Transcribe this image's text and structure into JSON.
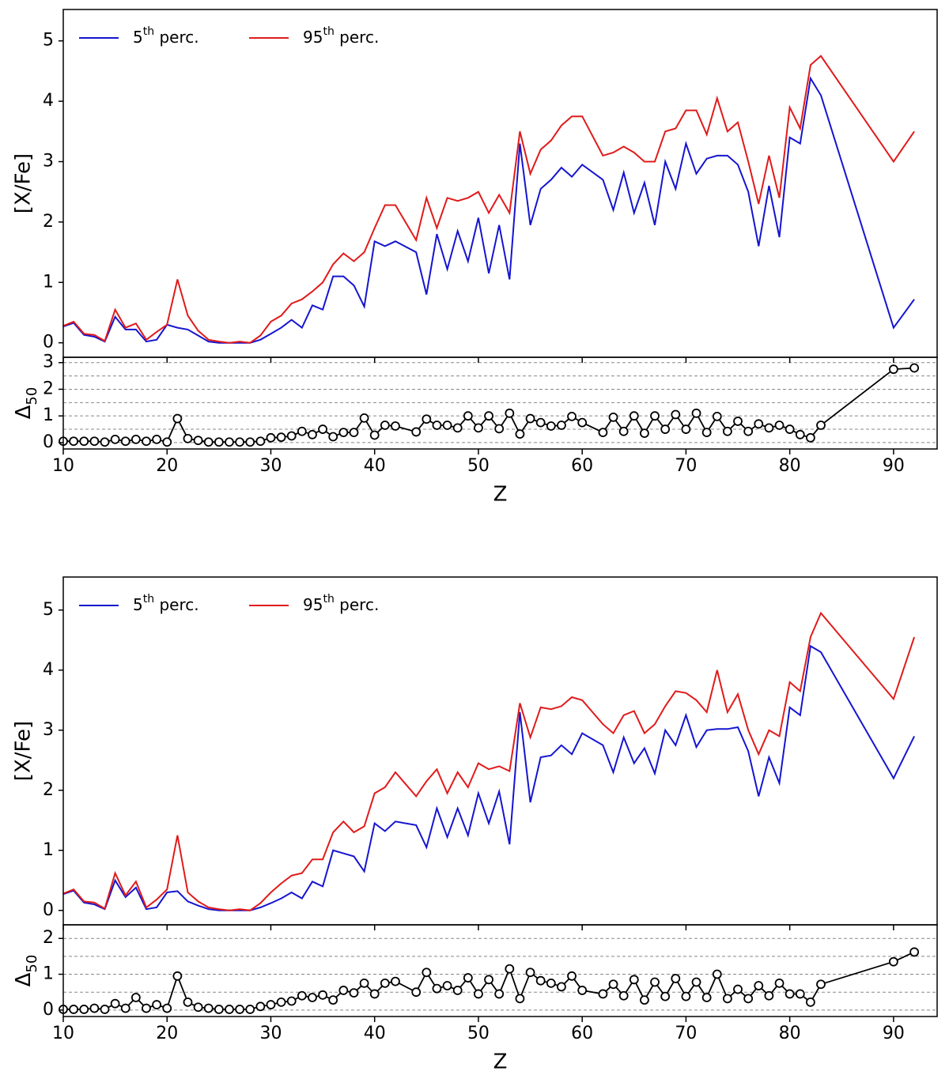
{
  "chart_data": [
    {
      "type": "line",
      "ylabel": "[X/Fe]",
      "xlabel": "Z",
      "legend": "upper left",
      "x": [
        10,
        11,
        12,
        13,
        14,
        15,
        16,
        17,
        18,
        19,
        20,
        21,
        22,
        23,
        24,
        25,
        26,
        27,
        28,
        29,
        30,
        31,
        32,
        33,
        34,
        35,
        36,
        37,
        38,
        39,
        40,
        41,
        42,
        44,
        45,
        46,
        47,
        48,
        49,
        50,
        51,
        52,
        53,
        54,
        55,
        56,
        57,
        58,
        59,
        60,
        62,
        63,
        64,
        65,
        66,
        67,
        68,
        69,
        70,
        71,
        72,
        73,
        74,
        75,
        76,
        77,
        78,
        79,
        80,
        81,
        82,
        83,
        90,
        92
      ],
      "xlim": [
        10,
        94.2
      ],
      "xticks": [
        10,
        20,
        30,
        40,
        50,
        60,
        70,
        80,
        90
      ],
      "ylim": [
        -0.24,
        5.52
      ],
      "yticks": [
        0,
        1,
        2,
        3,
        4,
        5
      ],
      "series": [
        {
          "name": "5th perc.",
          "color": "#1515d0",
          "values": [
            0.27,
            0.33,
            0.13,
            0.1,
            0.02,
            0.43,
            0.22,
            0.22,
            0.02,
            0.05,
            0.3,
            0.25,
            0.22,
            0.12,
            0.02,
            0,
            0,
            0,
            0,
            0.05,
            0.15,
            0.25,
            0.38,
            0.25,
            0.62,
            0.55,
            1.1,
            1.1,
            0.95,
            0.6,
            1.68,
            1.6,
            1.68,
            1.5,
            0.8,
            1.8,
            1.22,
            1.85,
            1.35,
            2.07,
            1.15,
            1.95,
            1.05,
            3.3,
            1.95,
            2.55,
            2.7,
            2.9,
            2.75,
            2.95,
            2.7,
            2.2,
            2.82,
            2.15,
            2.65,
            1.95,
            3.0,
            2.55,
            3.3,
            2.8,
            3.05,
            3.1,
            3.1,
            2.95,
            2.5,
            1.6,
            2.6,
            1.75,
            3.4,
            3.3,
            4.38,
            4.1,
            0.25,
            0.72
          ]
        },
        {
          "name": "95th perc.",
          "color": "#e01b1b",
          "values": [
            0.28,
            0.35,
            0.15,
            0.13,
            0.03,
            0.55,
            0.25,
            0.32,
            0.05,
            0.18,
            0.3,
            1.05,
            0.45,
            0.2,
            0.05,
            0.02,
            0,
            0.02,
            0,
            0.12,
            0.35,
            0.45,
            0.65,
            0.72,
            0.85,
            1.0,
            1.3,
            1.48,
            1.35,
            1.5,
            1.9,
            2.28,
            2.28,
            1.7,
            2.4,
            1.9,
            2.4,
            2.35,
            2.4,
            2.5,
            2.15,
            2.45,
            2.15,
            3.5,
            2.8,
            3.2,
            3.35,
            3.6,
            3.75,
            3.75,
            3.1,
            3.15,
            3.25,
            3.15,
            3.0,
            3.0,
            3.5,
            3.55,
            3.85,
            3.85,
            3.45,
            4.05,
            3.5,
            3.65,
            3.0,
            2.3,
            3.1,
            2.4,
            3.9,
            3.55,
            4.6,
            4.75,
            3.0,
            3.5
          ]
        }
      ],
      "subplot": {
        "type": "line",
        "ylabel": "Δ50",
        "color": "#000000",
        "ylim": [
          -0.24,
          3.2
        ],
        "yticks": [
          0,
          1,
          2,
          3
        ],
        "grid_values": [
          0,
          0.5,
          1,
          1.5,
          2,
          2.5,
          3
        ],
        "values": [
          0.05,
          0.05,
          0.05,
          0.05,
          0.02,
          0.12,
          0.05,
          0.12,
          0.05,
          0.12,
          0.02,
          0.9,
          0.15,
          0.08,
          0.02,
          0.02,
          0.02,
          0.02,
          0.02,
          0.05,
          0.18,
          0.2,
          0.25,
          0.42,
          0.3,
          0.5,
          0.22,
          0.38,
          0.38,
          0.92,
          0.28,
          0.65,
          0.62,
          0.4,
          0.88,
          0.65,
          0.65,
          0.55,
          1.0,
          0.55,
          1.0,
          0.52,
          1.1,
          0.32,
          0.9,
          0.75,
          0.62,
          0.65,
          0.98,
          0.75,
          0.38,
          0.95,
          0.42,
          1.0,
          0.35,
          1.0,
          0.5,
          1.05,
          0.5,
          1.1,
          0.38,
          0.98,
          0.42,
          0.8,
          0.42,
          0.7,
          0.55,
          0.65,
          0.5,
          0.3,
          0.18,
          0.65,
          2.75,
          2.8
        ]
      }
    },
    {
      "type": "line",
      "ylabel": "[X/Fe]",
      "xlabel": "Z",
      "legend": "upper left",
      "x": [
        10,
        11,
        12,
        13,
        14,
        15,
        16,
        17,
        18,
        19,
        20,
        21,
        22,
        23,
        24,
        25,
        26,
        27,
        28,
        29,
        30,
        31,
        32,
        33,
        34,
        35,
        36,
        37,
        38,
        39,
        40,
        41,
        42,
        44,
        45,
        46,
        47,
        48,
        49,
        50,
        51,
        52,
        53,
        54,
        55,
        56,
        57,
        58,
        59,
        60,
        62,
        63,
        64,
        65,
        66,
        67,
        68,
        69,
        70,
        71,
        72,
        73,
        74,
        75,
        76,
        77,
        78,
        79,
        80,
        81,
        82,
        83,
        90,
        92
      ],
      "xlim": [
        10,
        94.2
      ],
      "xticks": [
        10,
        20,
        30,
        40,
        50,
        60,
        70,
        80,
        90
      ],
      "ylim": [
        -0.24,
        5.55
      ],
      "yticks": [
        0,
        1,
        2,
        3,
        4,
        5
      ],
      "series": [
        {
          "name": "5th perc.",
          "color": "#1515d0",
          "values": [
            0.27,
            0.33,
            0.13,
            0.1,
            0.02,
            0.5,
            0.22,
            0.38,
            0.02,
            0.05,
            0.3,
            0.32,
            0.15,
            0.08,
            0.02,
            0,
            0,
            0,
            0,
            0.05,
            0.12,
            0.2,
            0.3,
            0.2,
            0.48,
            0.4,
            1.0,
            0.95,
            0.9,
            0.65,
            1.45,
            1.32,
            1.48,
            1.42,
            1.05,
            1.7,
            1.22,
            1.7,
            1.25,
            1.95,
            1.45,
            1.98,
            1.1,
            3.3,
            1.8,
            2.55,
            2.58,
            2.75,
            2.6,
            2.95,
            2.75,
            2.3,
            2.88,
            2.45,
            2.7,
            2.28,
            3.0,
            2.75,
            3.25,
            2.72,
            3.0,
            3.02,
            3.02,
            3.05,
            2.65,
            1.9,
            2.55,
            2.12,
            3.38,
            3.25,
            4.4,
            4.3,
            2.2,
            2.9
          ]
        },
        {
          "name": "95th perc.",
          "color": "#e01b1b",
          "values": [
            0.28,
            0.35,
            0.15,
            0.13,
            0.03,
            0.62,
            0.25,
            0.48,
            0.05,
            0.18,
            0.35,
            1.25,
            0.3,
            0.15,
            0.05,
            0.02,
            0,
            0.02,
            0,
            0.12,
            0.3,
            0.45,
            0.58,
            0.62,
            0.85,
            0.85,
            1.3,
            1.48,
            1.3,
            1.4,
            1.95,
            2.05,
            2.3,
            1.9,
            2.15,
            2.35,
            1.95,
            2.3,
            2.05,
            2.45,
            2.35,
            2.4,
            2.32,
            3.45,
            2.88,
            3.38,
            3.35,
            3.4,
            3.55,
            3.5,
            3.1,
            2.95,
            3.25,
            3.32,
            2.95,
            3.1,
            3.4,
            3.65,
            3.62,
            3.5,
            3.3,
            4.0,
            3.3,
            3.6,
            3.0,
            2.6,
            3.0,
            2.9,
            3.8,
            3.65,
            4.55,
            4.95,
            3.52,
            4.55
          ]
        }
      ],
      "subplot": {
        "type": "line",
        "ylabel": "Δ50",
        "color": "#000000",
        "ylim": [
          -0.18,
          2.38
        ],
        "yticks": [
          0,
          1,
          2
        ],
        "grid_values": [
          0,
          0.5,
          1,
          1.5,
          2
        ],
        "values": [
          0.02,
          0.02,
          0.02,
          0.05,
          0.02,
          0.18,
          0.05,
          0.35,
          0.05,
          0.15,
          0.05,
          0.95,
          0.22,
          0.08,
          0.05,
          0.02,
          0.02,
          0.02,
          0.02,
          0.1,
          0.15,
          0.22,
          0.25,
          0.4,
          0.35,
          0.42,
          0.28,
          0.55,
          0.48,
          0.75,
          0.45,
          0.75,
          0.8,
          0.5,
          1.05,
          0.6,
          0.68,
          0.55,
          0.9,
          0.45,
          0.85,
          0.45,
          1.15,
          0.32,
          1.05,
          0.82,
          0.75,
          0.65,
          0.95,
          0.55,
          0.45,
          0.72,
          0.4,
          0.85,
          0.28,
          0.78,
          0.38,
          0.88,
          0.38,
          0.78,
          0.35,
          1.0,
          0.32,
          0.58,
          0.32,
          0.68,
          0.4,
          0.75,
          0.45,
          0.45,
          0.22,
          0.72,
          1.35,
          1.62
        ]
      }
    }
  ]
}
